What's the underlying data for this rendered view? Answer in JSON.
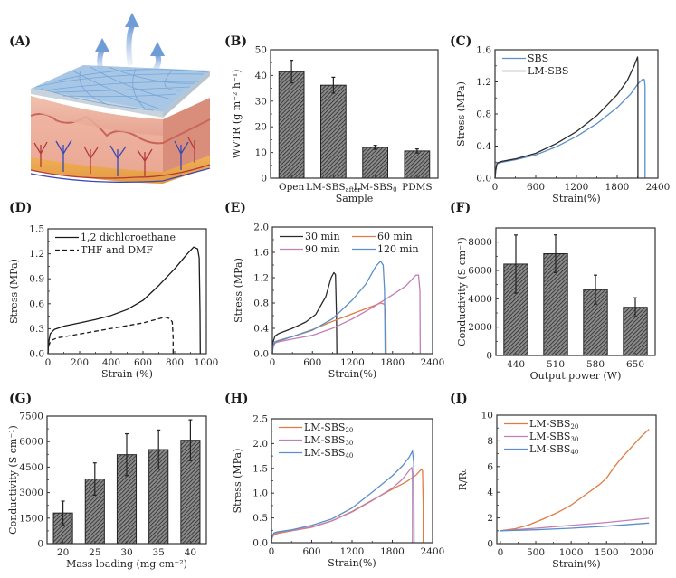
{
  "figure": {
    "panel_labels": [
      "(A)",
      "(B)",
      "(C)",
      "(D)",
      "(E)",
      "(F)",
      "(G)",
      "(H)",
      "(I)"
    ],
    "illustration": {
      "label": "(A)",
      "description": "Schematic of breathable LM-SBS fiber mat on skin with water-vapor arrows"
    }
  },
  "colors": {
    "black": "#2b2b2b",
    "orange": "#e07b43",
    "pink": "#c17fb4",
    "blue": "#5a8fc8",
    "bar_fill": "#555555"
  },
  "chart_data": [
    {
      "id": "B",
      "type": "bar",
      "title": "",
      "xlabel": "Sample",
      "ylabel": "WVTR (g m⁻² h⁻¹)",
      "categories": [
        "Open",
        "LM-SBS_after",
        "LM-SBS_0",
        "PDMS"
      ],
      "category_display": [
        {
          "main": "Open",
          "sub": ""
        },
        {
          "main": "LM-SBS",
          "sub": "after"
        },
        {
          "main": "LM-SBS",
          "sub": "0"
        },
        {
          "main": "PDMS",
          "sub": ""
        }
      ],
      "values": [
        41.5,
        36.2,
        12.0,
        10.6
      ],
      "errors": [
        4.4,
        3.1,
        0.8,
        0.8
      ],
      "ylim": [
        0,
        50
      ],
      "yticks": [
        0,
        10,
        20,
        30,
        40,
        50
      ],
      "ytick_labels": [
        "0",
        "10",
        "20",
        "30",
        "40",
        "50"
      ]
    },
    {
      "id": "C",
      "type": "line",
      "xlabel": "Strain(%)",
      "ylabel": "Stress (MPa)",
      "xlim": [
        0,
        2400
      ],
      "ylim": [
        0,
        1.6
      ],
      "xticks": [
        0,
        600,
        1200,
        1800,
        2400
      ],
      "xtick_labels": [
        "0",
        "600",
        "1200",
        "1800",
        "2400"
      ],
      "yticks": [
        0,
        0.4,
        0.8,
        1.2,
        1.6
      ],
      "ytick_labels": [
        "0.0",
        "0.4",
        "0.8",
        "1.2",
        "1.6"
      ],
      "legend": "top-left",
      "series": [
        {
          "name": "SBS",
          "color": "#5a8fc8",
          "x": [
            0,
            10,
            30,
            100,
            300,
            600,
            900,
            1200,
            1500,
            1800,
            2000,
            2100,
            2170,
            2200,
            2210,
            2210
          ],
          "y": [
            0,
            0.1,
            0.18,
            0.2,
            0.23,
            0.29,
            0.39,
            0.52,
            0.68,
            0.88,
            1.05,
            1.17,
            1.23,
            1.23,
            1.15,
            0
          ]
        },
        {
          "name": "LM-SBS",
          "color": "#2b2b2b",
          "x": [
            0,
            10,
            30,
            100,
            300,
            600,
            900,
            1200,
            1500,
            1800,
            1950,
            2050,
            2100,
            2105,
            2105
          ],
          "y": [
            0,
            0.1,
            0.19,
            0.21,
            0.24,
            0.31,
            0.43,
            0.58,
            0.78,
            1.04,
            1.22,
            1.4,
            1.51,
            1.45,
            0
          ]
        }
      ]
    },
    {
      "id": "D",
      "type": "line",
      "xlabel": "Strain (%)",
      "ylabel": "Stress (MPa)",
      "xlim": [
        0,
        1000
      ],
      "ylim": [
        0,
        1.5
      ],
      "xticks": [
        0,
        200,
        400,
        600,
        800,
        1000
      ],
      "xtick_labels": [
        "0",
        "200",
        "400",
        "600",
        "800",
        "1000"
      ],
      "yticks": [
        0,
        0.3,
        0.6,
        0.9,
        1.2,
        1.5
      ],
      "ytick_labels": [
        "0.0",
        "0.3",
        "0.6",
        "0.9",
        "1.2",
        "1.5"
      ],
      "legend": "top-left",
      "series": [
        {
          "name": "1,2 dichloroethane",
          "dash": "solid",
          "color": "#1a1a1a",
          "x": [
            0,
            5,
            15,
            40,
            100,
            200,
            300,
            400,
            500,
            600,
            700,
            800,
            880,
            920,
            945,
            955,
            960,
            962
          ],
          "y": [
            0,
            0.15,
            0.24,
            0.29,
            0.33,
            0.37,
            0.41,
            0.46,
            0.53,
            0.64,
            0.82,
            1.02,
            1.2,
            1.28,
            1.26,
            1.15,
            0.5,
            0
          ]
        },
        {
          "name": "THF and DMF",
          "dash": "dashed",
          "color": "#1a1a1a",
          "x": [
            0,
            5,
            20,
            60,
            150,
            300,
            450,
            600,
            700,
            740,
            770,
            785,
            790,
            790
          ],
          "y": [
            0,
            0.1,
            0.16,
            0.19,
            0.22,
            0.27,
            0.32,
            0.37,
            0.42,
            0.44,
            0.42,
            0.38,
            0.2,
            0
          ]
        }
      ]
    },
    {
      "id": "E",
      "type": "line",
      "xlabel": "Strain(%)",
      "ylabel": "Stress (MPa)",
      "xlim": [
        0,
        2400
      ],
      "ylim": [
        0,
        2.0
      ],
      "xticks": [
        0,
        600,
        1200,
        1800,
        2400
      ],
      "xtick_labels": [
        "0",
        "600",
        "1200",
        "1800",
        "2400"
      ],
      "yticks": [
        0,
        0.4,
        0.8,
        1.2,
        1.6,
        2.0
      ],
      "ytick_labels": [
        "0.0",
        "0.4",
        "0.8",
        "1.2",
        "1.6",
        "2.0"
      ],
      "legend": "top (2 columns)",
      "series": [
        {
          "name": "30 min",
          "color": "#2b2b2b",
          "x": [
            0,
            10,
            40,
            100,
            300,
            500,
            650,
            800,
            880,
            920,
            945,
            960,
            965
          ],
          "y": [
            0,
            0.18,
            0.28,
            0.32,
            0.4,
            0.5,
            0.62,
            0.9,
            1.2,
            1.28,
            1.25,
            0.6,
            0
          ]
        },
        {
          "name": "60 min",
          "color": "#e07b43",
          "x": [
            0,
            10,
            40,
            100,
            300,
            600,
            900,
            1200,
            1500,
            1620,
            1680,
            1700,
            1705
          ],
          "y": [
            0,
            0.1,
            0.17,
            0.2,
            0.27,
            0.38,
            0.51,
            0.63,
            0.75,
            0.8,
            0.78,
            0.5,
            0
          ]
        },
        {
          "name": "90 min",
          "color": "#c17fb4",
          "x": [
            0,
            10,
            40,
            100,
            300,
            600,
            900,
            1200,
            1500,
            1800,
            2000,
            2150,
            2190,
            2210,
            2215
          ],
          "y": [
            0,
            0.1,
            0.17,
            0.19,
            0.23,
            0.29,
            0.4,
            0.55,
            0.73,
            0.93,
            1.07,
            1.24,
            1.24,
            1.0,
            0
          ]
        },
        {
          "name": "120 min",
          "color": "#5a8fc8",
          "x": [
            0,
            10,
            40,
            100,
            300,
            600,
            900,
            1200,
            1400,
            1550,
            1620,
            1660,
            1680,
            1690
          ],
          "y": [
            0,
            0.12,
            0.19,
            0.21,
            0.27,
            0.37,
            0.55,
            0.85,
            1.1,
            1.38,
            1.46,
            1.4,
            1.0,
            0
          ]
        }
      ]
    },
    {
      "id": "F",
      "type": "bar",
      "xlabel": "Output power (W)",
      "ylabel": "Conductivity (S cm⁻¹)",
      "categories": [
        "440",
        "510",
        "580",
        "650"
      ],
      "values": [
        6450,
        7180,
        4650,
        3400
      ],
      "errors": [
        2050,
        1330,
        1020,
        670
      ],
      "ylim": [
        0,
        9000
      ],
      "yticks": [
        0,
        2000,
        4000,
        6000,
        8000
      ],
      "ytick_labels": [
        "0",
        "2000",
        "4000",
        "6000",
        "8000"
      ]
    },
    {
      "id": "G",
      "type": "bar",
      "xlabel": "Mass loading (mg cm⁻²)",
      "ylabel": "Conductivity (S cm⁻¹)",
      "categories": [
        "20",
        "25",
        "30",
        "35",
        "40"
      ],
      "values": [
        1800,
        3800,
        5230,
        5530,
        6080
      ],
      "errors": [
        700,
        950,
        1230,
        1150,
        1200
      ],
      "ylim": [
        0,
        7500
      ],
      "yticks": [
        0,
        1500,
        3000,
        4500,
        6000,
        7500
      ],
      "ytick_labels": [
        "0",
        "1500",
        "3000",
        "4500",
        "6000",
        "7500"
      ]
    },
    {
      "id": "H",
      "type": "line",
      "xlabel": "Strain(%)",
      "ylabel": "Stress (MPa)",
      "xlim": [
        0,
        2400
      ],
      "ylim": [
        0,
        2.5
      ],
      "xticks": [
        0,
        600,
        1200,
        1800,
        2400
      ],
      "xtick_labels": [
        "0",
        "600",
        "1200",
        "1800",
        "2400"
      ],
      "yticks": [
        0,
        0.5,
        1.0,
        1.5,
        2.0,
        2.5
      ],
      "ytick_labels": [
        "0.0",
        "0.5",
        "1.0",
        "1.5",
        "2.0",
        "2.5"
      ],
      "legend": "top-left",
      "series": [
        {
          "name": "LM-SBS_20",
          "sub": "20",
          "color": "#e07b43",
          "x": [
            0,
            10,
            40,
            100,
            300,
            600,
            900,
            1200,
            1500,
            1800,
            2000,
            2150,
            2230,
            2250,
            2260,
            2260
          ],
          "y": [
            0,
            0.1,
            0.16,
            0.19,
            0.24,
            0.31,
            0.44,
            0.63,
            0.86,
            1.08,
            1.22,
            1.36,
            1.48,
            1.45,
            0.8,
            0
          ]
        },
        {
          "name": "LM-SBS_30",
          "sub": "30",
          "color": "#c17fb4",
          "x": [
            0,
            10,
            40,
            100,
            300,
            600,
            900,
            1200,
            1500,
            1800,
            1950,
            2050,
            2090,
            2100,
            2100
          ],
          "y": [
            0,
            0.12,
            0.18,
            0.21,
            0.25,
            0.32,
            0.44,
            0.62,
            0.85,
            1.1,
            1.28,
            1.45,
            1.52,
            1.4,
            0
          ]
        },
        {
          "name": "LM-SBS_40",
          "sub": "40",
          "color": "#5a8fc8",
          "x": [
            0,
            10,
            40,
            100,
            300,
            600,
            900,
            1200,
            1500,
            1800,
            1950,
            2050,
            2100,
            2120,
            2125
          ],
          "y": [
            0,
            0.14,
            0.2,
            0.22,
            0.26,
            0.35,
            0.48,
            0.7,
            1.02,
            1.35,
            1.55,
            1.72,
            1.85,
            1.6,
            0
          ]
        }
      ]
    },
    {
      "id": "I",
      "type": "line",
      "xlabel": "Strain(%)",
      "ylabel": "R/R₀",
      "xlim": [
        -50,
        2200
      ],
      "ylim": [
        0,
        10
      ],
      "xticks": [
        0,
        500,
        1000,
        1500,
        2000
      ],
      "xtick_labels": [
        "0",
        "500",
        "1000",
        "1500",
        "2000"
      ],
      "yticks": [
        0,
        2,
        4,
        6,
        8,
        10
      ],
      "ytick_labels": [
        "0",
        "2",
        "4",
        "6",
        "8",
        "10"
      ],
      "legend": "top-left",
      "series": [
        {
          "name": "LM-SBS_20",
          "sub": "20",
          "color": "#e07b43",
          "x": [
            0,
            200,
            400,
            600,
            800,
            1000,
            1200,
            1400,
            1500,
            1600,
            1700,
            1800,
            1900,
            2000,
            2100
          ],
          "y": [
            1.0,
            1.15,
            1.45,
            1.9,
            2.4,
            3.0,
            3.8,
            4.6,
            5.1,
            5.9,
            6.6,
            7.2,
            7.8,
            8.4,
            8.9
          ]
        },
        {
          "name": "LM-SBS_30",
          "sub": "30",
          "color": "#c17fb4",
          "x": [
            0,
            500,
            1000,
            1500,
            2100
          ],
          "y": [
            1.0,
            1.2,
            1.42,
            1.65,
            1.98
          ]
        },
        {
          "name": "LM-SBS_40",
          "sub": "40",
          "color": "#5a8fc8",
          "x": [
            0,
            500,
            1000,
            1500,
            2100
          ],
          "y": [
            1.0,
            1.08,
            1.2,
            1.36,
            1.6
          ]
        }
      ]
    }
  ]
}
